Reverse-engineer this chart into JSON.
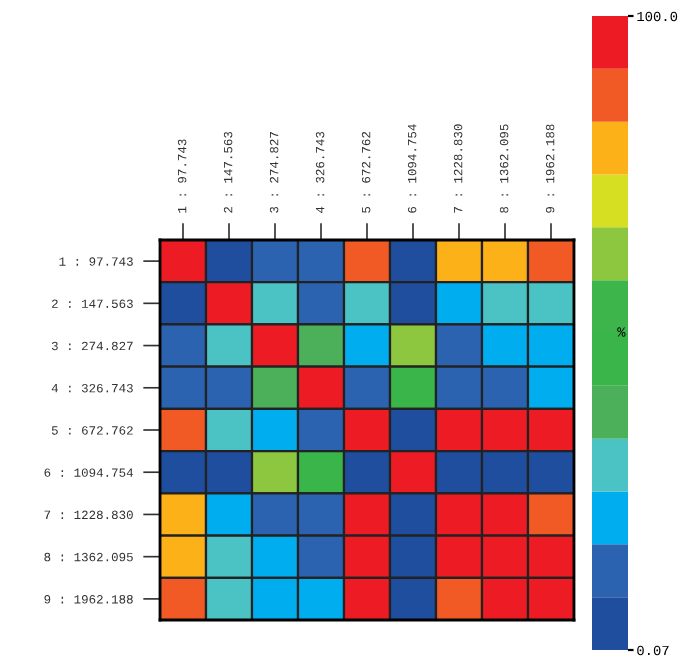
{
  "chart_data": {
    "type": "heatmap",
    "clabel": "%",
    "categories": [
      "1 : 97.743",
      "2 : 147.563",
      "3 : 274.827",
      "4 : 326.743",
      "5 : 672.762",
      "6 : 1094.754",
      "7 : 1228.830",
      "8 : 1362.095",
      "9 : 1962.188"
    ],
    "y_categories": [
      "1 : 97.743",
      "2 : 147.563",
      "3 : 274.827",
      "4 : 326.743",
      "5 : 672.762",
      "6 : 1094.754",
      "7 : 1228.830",
      "8 : 1362.095",
      "9 : 1962.188"
    ],
    "cells": [
      [
        96,
        4,
        13,
        13,
        88,
        4,
        79,
        79,
        88
      ],
      [
        4,
        96,
        29,
        13,
        29,
        4,
        21,
        29,
        29
      ],
      [
        13,
        29,
        96,
        38,
        21,
        63,
        13,
        21,
        21
      ],
      [
        13,
        13,
        38,
        96,
        13,
        46,
        13,
        13,
        21
      ],
      [
        88,
        29,
        21,
        13,
        96,
        4,
        96,
        96,
        96
      ],
      [
        4,
        4,
        63,
        46,
        4,
        96,
        4,
        4,
        4
      ],
      [
        79,
        21,
        13,
        13,
        96,
        4,
        96,
        96,
        88
      ],
      [
        79,
        29,
        21,
        13,
        96,
        4,
        96,
        96,
        96
      ],
      [
        88,
        29,
        21,
        21,
        96,
        4,
        88,
        96,
        96
      ]
    ],
    "clim": [
      0.07,
      100
    ],
    "cticks": [
      0.07,
      {
        "value": 100,
        "label": "100.0"
      }
    ],
    "colors": [
      "#1f4e9f",
      "#2b63b0",
      "#00aeef",
      "#4bc3c4",
      "#4cb05a",
      "#3ab54a",
      "#3db54a",
      "#8dc63f",
      "#d7df23",
      "#fbb117",
      "#f15a24",
      "#ed1c24"
    ]
  }
}
